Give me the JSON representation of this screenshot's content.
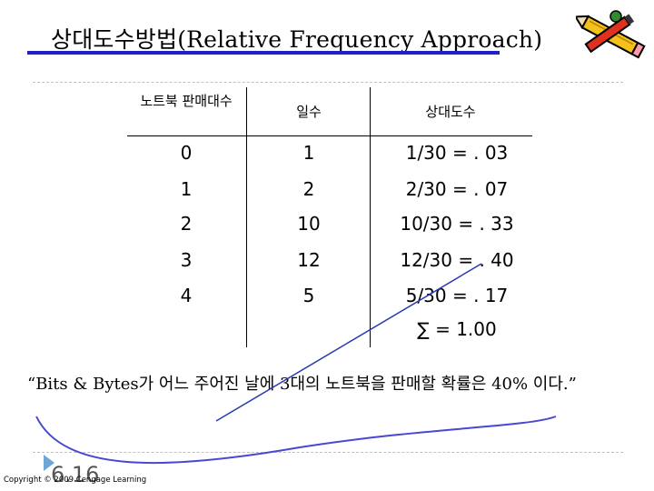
{
  "slide": {
    "title": "상대도수방법(Relative Frequency Approach)",
    "quote": "“Bits & Bytes가 어느 주어진 날에 3대의 노트북을 판매할 확률은 40% 이다.”",
    "copyright": "Copyright © 2009 Cengage Learning",
    "page_number": "6.16"
  },
  "table": {
    "headers": [
      "노트북 판매대수",
      "일수",
      "상대도수"
    ],
    "rows": [
      [
        "0",
        "1",
        "1/30 = . 03"
      ],
      [
        "1",
        "2",
        "2/30 = . 07"
      ],
      [
        "2",
        "10",
        "10/30 = . 33"
      ],
      [
        "3",
        "12",
        "12/30 = . 40"
      ],
      [
        "4",
        "5",
        "5/30 = . 17"
      ]
    ],
    "total": "∑ = 1.00"
  },
  "icons": {
    "pencil": "pencil-clipart-icon",
    "bullet": "triangle-bullet-icon"
  },
  "colors": {
    "title_underline": "#2020c8",
    "annotation_line": "#2a3ab0",
    "annotation_curve": "#4848d0"
  }
}
